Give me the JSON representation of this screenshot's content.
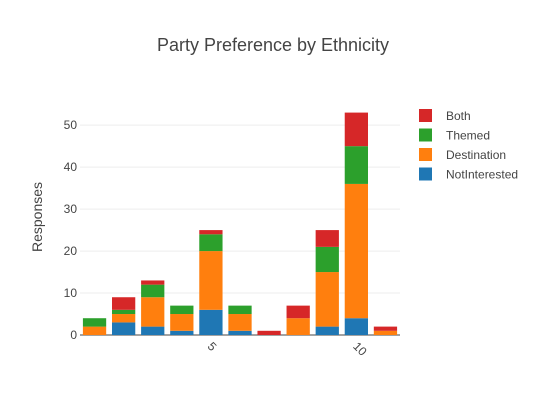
{
  "chart_data": {
    "type": "bar",
    "barmode": "stack",
    "title": "Party Preference by Ethnicity",
    "xlabel": "",
    "ylabel": "Responses",
    "x": [
      1,
      2,
      3,
      4,
      5,
      6,
      7,
      8,
      9,
      10,
      11
    ],
    "xticks": [
      5,
      10
    ],
    "xtick_labels": [
      "5",
      "10"
    ],
    "xlim": [
      0.5,
      11.5
    ],
    "ylim": [
      0,
      56
    ],
    "yticks": [
      0,
      10,
      20,
      30,
      40,
      50
    ],
    "ytick_labels": [
      "0",
      "10",
      "20",
      "30",
      "40",
      "50"
    ],
    "grid": true,
    "legend_position": "top-right",
    "series": [
      {
        "name": "NotInterested",
        "color": "#1f77b4",
        "values": [
          0,
          3,
          2,
          1,
          6,
          1,
          0,
          0,
          2,
          4,
          0
        ]
      },
      {
        "name": "Destination",
        "color": "#ff7f0e",
        "values": [
          2,
          2,
          7,
          4,
          14,
          4,
          0,
          4,
          13,
          32,
          1
        ]
      },
      {
        "name": "Themed",
        "color": "#2ca02c",
        "values": [
          2,
          1,
          3,
          2,
          4,
          2,
          0,
          0,
          6,
          9,
          0
        ]
      },
      {
        "name": "Both",
        "color": "#d62728",
        "values": [
          0,
          3,
          1,
          0,
          1,
          0,
          1,
          3,
          4,
          8,
          1
        ]
      }
    ],
    "legend_order": [
      "Both",
      "Themed",
      "Destination",
      "NotInterested"
    ]
  }
}
